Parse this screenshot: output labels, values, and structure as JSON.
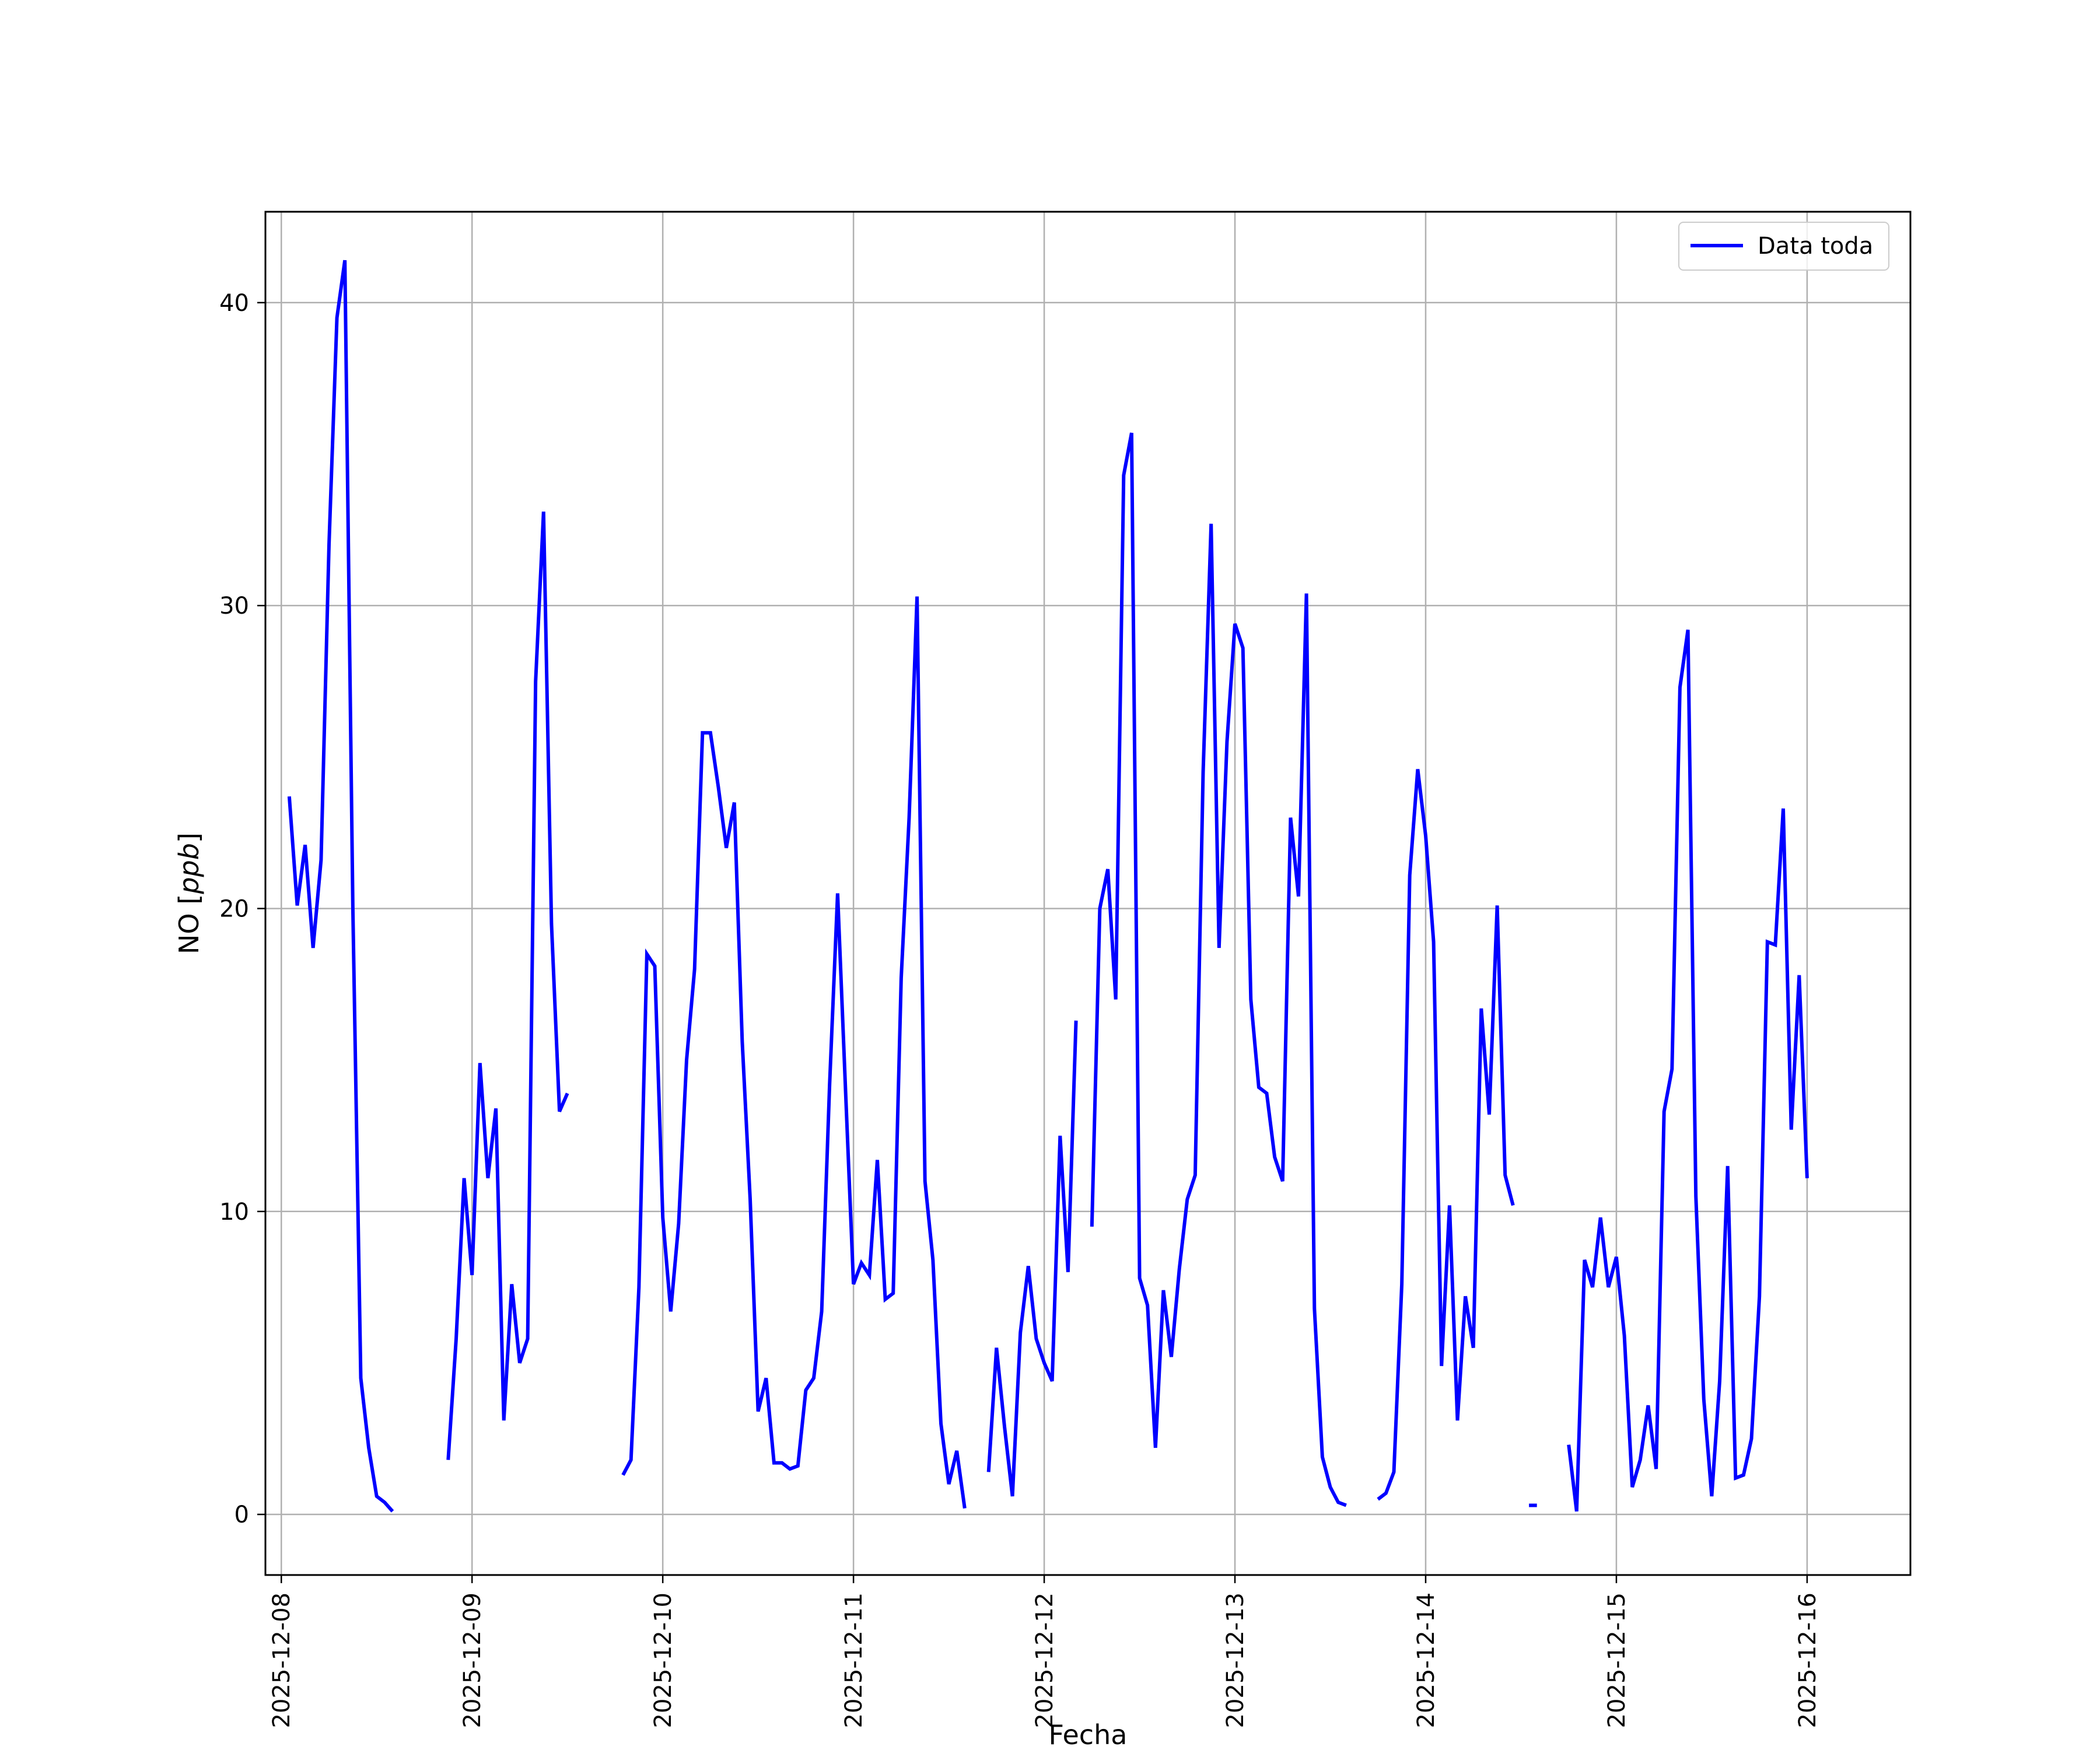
{
  "chart_data": {
    "type": "line",
    "xlabel": "Fecha",
    "ylabel": "NO",
    "ylabel_unit": "ppb",
    "xlim": [
      "2025-12-07T22:00",
      "2025-12-16T13:00"
    ],
    "ylim": [
      -2,
      43
    ],
    "x_ticks": [
      "2025-12-08",
      "2025-12-09",
      "2025-12-10",
      "2025-12-11",
      "2025-12-12",
      "2025-12-13",
      "2025-12-14",
      "2025-12-15",
      "2025-12-16"
    ],
    "y_ticks": [
      0,
      10,
      20,
      30,
      40
    ],
    "grid": true,
    "legend_position": "top-right",
    "colors": {
      "series": "#0000ff",
      "grid": "#b0b0b0",
      "axes": "#000000"
    },
    "series": [
      {
        "name": "Data toda",
        "segments": [
          [
            [
              "2025-12-08T01:00",
              23.7
            ],
            [
              "2025-12-08T02:00",
              20.1
            ],
            [
              "2025-12-08T03:00",
              22.1
            ],
            [
              "2025-12-08T04:00",
              18.7
            ],
            [
              "2025-12-08T05:00",
              21.6
            ],
            [
              "2025-12-08T06:00",
              32.0
            ],
            [
              "2025-12-08T07:00",
              39.5
            ],
            [
              "2025-12-08T08:00",
              41.4
            ],
            [
              "2025-12-08T09:00",
              20.0
            ],
            [
              "2025-12-08T10:00",
              4.5
            ],
            [
              "2025-12-08T11:00",
              2.2
            ],
            [
              "2025-12-08T12:00",
              0.6
            ],
            [
              "2025-12-08T13:00",
              0.4
            ],
            [
              "2025-12-08T14:00",
              0.1
            ]
          ],
          [
            [
              "2025-12-08T21:00",
              1.8
            ],
            [
              "2025-12-08T22:00",
              5.8
            ],
            [
              "2025-12-08T23:00",
              11.1
            ],
            [
              "2025-12-09T00:00",
              7.9
            ],
            [
              "2025-12-09T01:00",
              14.9
            ],
            [
              "2025-12-09T02:00",
              11.1
            ],
            [
              "2025-12-09T03:00",
              13.4
            ],
            [
              "2025-12-09T04:00",
              3.1
            ],
            [
              "2025-12-09T05:00",
              7.6
            ],
            [
              "2025-12-09T06:00",
              5.0
            ],
            [
              "2025-12-09T07:00",
              5.8
            ],
            [
              "2025-12-09T08:00",
              27.5
            ],
            [
              "2025-12-09T09:00",
              33.1
            ],
            [
              "2025-12-09T10:00",
              19.5
            ],
            [
              "2025-12-09T11:00",
              13.3
            ],
            [
              "2025-12-09T12:00",
              13.9
            ]
          ],
          [
            [
              "2025-12-09T19:00",
              1.3
            ],
            [
              "2025-12-09T20:00",
              1.8
            ],
            [
              "2025-12-09T21:00",
              7.5
            ],
            [
              "2025-12-09T22:00",
              18.5
            ],
            [
              "2025-12-09T23:00",
              18.1
            ],
            [
              "2025-12-10T00:00",
              9.8
            ],
            [
              "2025-12-10T01:00",
              6.7
            ],
            [
              "2025-12-10T02:00",
              9.6
            ],
            [
              "2025-12-10T03:00",
              15.0
            ],
            [
              "2025-12-10T04:00",
              18.0
            ],
            [
              "2025-12-10T05:00",
              25.8
            ],
            [
              "2025-12-10T06:00",
              25.8
            ],
            [
              "2025-12-10T07:00",
              24.0
            ],
            [
              "2025-12-10T08:00",
              22.0
            ],
            [
              "2025-12-10T09:00",
              23.5
            ],
            [
              "2025-12-10T10:00",
              15.6
            ],
            [
              "2025-12-10T11:00",
              10.4
            ],
            [
              "2025-12-10T12:00",
              3.4
            ],
            [
              "2025-12-10T13:00",
              4.5
            ],
            [
              "2025-12-10T14:00",
              1.7
            ],
            [
              "2025-12-10T15:00",
              1.7
            ],
            [
              "2025-12-10T16:00",
              1.5
            ],
            [
              "2025-12-10T17:00",
              1.6
            ],
            [
              "2025-12-10T18:00",
              4.1
            ],
            [
              "2025-12-10T19:00",
              4.5
            ],
            [
              "2025-12-10T20:00",
              6.7
            ],
            [
              "2025-12-10T21:00",
              14.2
            ],
            [
              "2025-12-10T22:00",
              20.5
            ],
            [
              "2025-12-10T23:00",
              14.0
            ],
            [
              "2025-12-11T00:00",
              7.6
            ],
            [
              "2025-12-11T01:00",
              8.3
            ],
            [
              "2025-12-11T02:00",
              7.9
            ],
            [
              "2025-12-11T03:00",
              11.7
            ],
            [
              "2025-12-11T04:00",
              7.1
            ],
            [
              "2025-12-11T05:00",
              7.3
            ],
            [
              "2025-12-11T06:00",
              17.7
            ],
            [
              "2025-12-11T07:00",
              23.0
            ],
            [
              "2025-12-11T08:00",
              30.3
            ],
            [
              "2025-12-11T09:00",
              11.0
            ],
            [
              "2025-12-11T10:00",
              8.4
            ],
            [
              "2025-12-11T11:00",
              3.0
            ],
            [
              "2025-12-11T12:00",
              1.0
            ],
            [
              "2025-12-11T13:00",
              2.1
            ],
            [
              "2025-12-11T14:00",
              0.2
            ]
          ],
          [
            [
              "2025-12-11T17:00",
              1.4
            ],
            [
              "2025-12-11T18:00",
              5.5
            ],
            [
              "2025-12-11T19:00",
              2.9
            ],
            [
              "2025-12-11T20:00",
              0.6
            ],
            [
              "2025-12-11T21:00",
              6.0
            ],
            [
              "2025-12-11T22:00",
              8.2
            ],
            [
              "2025-12-11T23:00",
              5.8
            ],
            [
              "2025-12-12T00:00",
              5.0
            ],
            [
              "2025-12-12T01:00",
              4.4
            ],
            [
              "2025-12-12T02:00",
              12.5
            ],
            [
              "2025-12-12T03:00",
              8.0
            ],
            [
              "2025-12-12T04:00",
              16.3
            ]
          ],
          [
            [
              "2025-12-12T06:00",
              9.5
            ],
            [
              "2025-12-12T07:00",
              20.0
            ],
            [
              "2025-12-12T08:00",
              21.3
            ],
            [
              "2025-12-12T09:00",
              17.0
            ],
            [
              "2025-12-12T10:00",
              34.3
            ],
            [
              "2025-12-12T11:00",
              35.7
            ],
            [
              "2025-12-12T12:00",
              7.8
            ],
            [
              "2025-12-12T13:00",
              6.9
            ],
            [
              "2025-12-12T14:00",
              2.2
            ],
            [
              "2025-12-12T15:00",
              7.4
            ],
            [
              "2025-12-12T16:00",
              5.2
            ],
            [
              "2025-12-12T17:00",
              8.1
            ],
            [
              "2025-12-12T18:00",
              10.4
            ],
            [
              "2025-12-12T19:00",
              11.2
            ],
            [
              "2025-12-12T20:00",
              24.5
            ],
            [
              "2025-12-12T21:00",
              32.7
            ],
            [
              "2025-12-12T22:00",
              18.7
            ],
            [
              "2025-12-12T23:00",
              25.5
            ],
            [
              "2025-12-13T00:00",
              29.4
            ],
            [
              "2025-12-13T01:00",
              28.6
            ],
            [
              "2025-12-13T02:00",
              17.0
            ],
            [
              "2025-12-13T03:00",
              14.1
            ],
            [
              "2025-12-13T04:00",
              13.9
            ],
            [
              "2025-12-13T05:00",
              11.8
            ],
            [
              "2025-12-13T06:00",
              11.0
            ],
            [
              "2025-12-13T07:00",
              23.0
            ],
            [
              "2025-12-13T08:00",
              20.4
            ],
            [
              "2025-12-13T09:00",
              30.4
            ],
            [
              "2025-12-13T10:00",
              6.8
            ],
            [
              "2025-12-13T11:00",
              1.9
            ],
            [
              "2025-12-13T12:00",
              0.9
            ],
            [
              "2025-12-13T13:00",
              0.4
            ],
            [
              "2025-12-13T14:00",
              0.3
            ]
          ],
          [
            [
              "2025-12-13T18:00",
              0.5
            ],
            [
              "2025-12-13T19:00",
              0.7
            ],
            [
              "2025-12-13T20:00",
              1.4
            ],
            [
              "2025-12-13T21:00",
              7.6
            ],
            [
              "2025-12-13T22:00",
              21.1
            ],
            [
              "2025-12-13T23:00",
              24.6
            ],
            [
              "2025-12-14T00:00",
              22.4
            ],
            [
              "2025-12-14T01:00",
              18.9
            ],
            [
              "2025-12-14T02:00",
              4.9
            ],
            [
              "2025-12-14T03:00",
              10.2
            ],
            [
              "2025-12-14T04:00",
              3.1
            ],
            [
              "2025-12-14T05:00",
              7.2
            ],
            [
              "2025-12-14T06:00",
              5.5
            ],
            [
              "2025-12-14T07:00",
              16.7
            ],
            [
              "2025-12-14T08:00",
              13.2
            ],
            [
              "2025-12-14T09:00",
              20.1
            ],
            [
              "2025-12-14T10:00",
              11.2
            ],
            [
              "2025-12-14T11:00",
              10.2
            ]
          ],
          [
            [
              "2025-12-14T13:00",
              0.3
            ],
            [
              "2025-12-14T14:00",
              0.3
            ]
          ],
          [
            [
              "2025-12-14T18:00",
              2.3
            ],
            [
              "2025-12-14T19:00",
              0.1
            ],
            [
              "2025-12-14T20:00",
              8.4
            ],
            [
              "2025-12-14T21:00",
              7.5
            ],
            [
              "2025-12-14T22:00",
              9.8
            ],
            [
              "2025-12-14T23:00",
              7.5
            ],
            [
              "2025-12-15T00:00",
              8.5
            ],
            [
              "2025-12-15T01:00",
              5.9
            ],
            [
              "2025-12-15T02:00",
              0.9
            ],
            [
              "2025-12-15T03:00",
              1.8
            ],
            [
              "2025-12-15T04:00",
              3.6
            ],
            [
              "2025-12-15T05:00",
              1.5
            ],
            [
              "2025-12-15T06:00",
              13.3
            ],
            [
              "2025-12-15T07:00",
              14.7
            ],
            [
              "2025-12-15T08:00",
              27.3
            ],
            [
              "2025-12-15T09:00",
              29.2
            ],
            [
              "2025-12-15T10:00",
              10.5
            ],
            [
              "2025-12-15T11:00",
              3.8
            ],
            [
              "2025-12-15T12:00",
              0.6
            ],
            [
              "2025-12-15T13:00",
              4.4
            ],
            [
              "2025-12-15T14:00",
              11.5
            ],
            [
              "2025-12-15T15:00",
              1.2
            ],
            [
              "2025-12-15T16:00",
              1.3
            ],
            [
              "2025-12-15T17:00",
              2.5
            ],
            [
              "2025-12-15T18:00",
              7.2
            ],
            [
              "2025-12-15T19:00",
              18.9
            ],
            [
              "2025-12-15T20:00",
              18.8
            ],
            [
              "2025-12-15T21:00",
              23.3
            ],
            [
              "2025-12-15T22:00",
              12.7
            ],
            [
              "2025-12-15T23:00",
              17.8
            ],
            [
              "2025-12-16T00:00",
              11.1
            ]
          ]
        ]
      }
    ]
  }
}
